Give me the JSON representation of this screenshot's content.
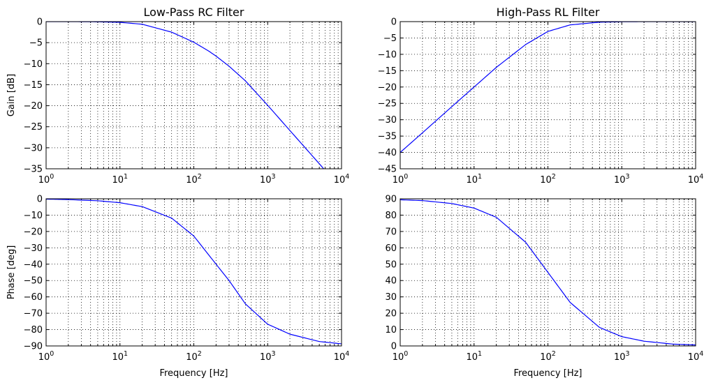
{
  "chart_data": [
    {
      "type": "line",
      "title": "Low-Pass RC Filter",
      "xlabel": "",
      "ylabel": "Gain [dB]",
      "xscale": "log",
      "xlim": [
        1,
        10000
      ],
      "ylim": [
        -35,
        0
      ],
      "yticks": [
        0,
        -5,
        -10,
        -15,
        -20,
        -25,
        -30,
        -35
      ],
      "ytick_labels": [
        "0",
        "−5",
        "−10",
        "−15",
        "−20",
        "−25",
        "−30",
        "−35"
      ],
      "xticks": [
        {
          "base": "10",
          "exp": "0",
          "value": 1
        },
        {
          "base": "10",
          "exp": "1",
          "value": 10
        },
        {
          "base": "10",
          "exp": "2",
          "value": 100
        },
        {
          "base": "10",
          "exp": "3",
          "value": 1000
        },
        {
          "base": "10",
          "exp": "4",
          "value": 10000
        }
      ],
      "grid": true,
      "color": "#0000ff",
      "series": [
        {
          "x": [
            1,
            2,
            5,
            10,
            20,
            50,
            100,
            159,
            200,
            300,
            500,
            1000,
            2000,
            5000,
            10000
          ],
          "y": [
            0,
            0,
            -0.04,
            -0.17,
            -0.62,
            -2.5,
            -4.9,
            -7.0,
            -8.2,
            -10.6,
            -14.1,
            -19.9,
            -25.9,
            -33.8,
            -39.9
          ]
        }
      ]
    },
    {
      "type": "line",
      "title": "High-Pass RL Filter",
      "xlabel": "",
      "ylabel": "",
      "xscale": "log",
      "xlim": [
        1,
        10000
      ],
      "ylim": [
        -45,
        0
      ],
      "yticks": [
        0,
        -5,
        -10,
        -15,
        -20,
        -25,
        -30,
        -35,
        -40,
        -45
      ],
      "ytick_labels": [
        "0",
        "−5",
        "−10",
        "−15",
        "−20",
        "−25",
        "−30",
        "−35",
        "−40",
        "−45"
      ],
      "xticks": [
        {
          "base": "10",
          "exp": "0",
          "value": 1
        },
        {
          "base": "10",
          "exp": "1",
          "value": 10
        },
        {
          "base": "10",
          "exp": "2",
          "value": 100
        },
        {
          "base": "10",
          "exp": "3",
          "value": 1000
        },
        {
          "base": "10",
          "exp": "4",
          "value": 10000
        }
      ],
      "grid": true,
      "color": "#0000ff",
      "series": [
        {
          "x": [
            1,
            2,
            5,
            10,
            20,
            50,
            100,
            200,
            500,
            1000,
            2000,
            5000,
            10000
          ],
          "y": [
            -40.0,
            -34.0,
            -26.0,
            -20.0,
            -14.0,
            -7.0,
            -3.0,
            -1.0,
            -0.17,
            -0.04,
            -0.01,
            0,
            0
          ]
        }
      ]
    },
    {
      "type": "line",
      "title": "",
      "xlabel": "Frequency [Hz]",
      "ylabel": "Phase [deg]",
      "xscale": "log",
      "xlim": [
        1,
        10000
      ],
      "ylim": [
        -90,
        0
      ],
      "yticks": [
        0,
        -10,
        -20,
        -30,
        -40,
        -50,
        -60,
        -70,
        -80,
        -90
      ],
      "ytick_labels": [
        "0",
        "−10",
        "−20",
        "−30",
        "−40",
        "−50",
        "−60",
        "−70",
        "−80",
        "−90"
      ],
      "xticks": [
        {
          "base": "10",
          "exp": "0",
          "value": 1
        },
        {
          "base": "10",
          "exp": "1",
          "value": 10
        },
        {
          "base": "10",
          "exp": "2",
          "value": 100
        },
        {
          "base": "10",
          "exp": "3",
          "value": 1000
        },
        {
          "base": "10",
          "exp": "4",
          "value": 10000
        }
      ],
      "grid": true,
      "color": "#0000ff",
      "series": [
        {
          "x": [
            1,
            2,
            5,
            10,
            20,
            50,
            100,
            200,
            300,
            500,
            1000,
            2000,
            5000,
            10000
          ],
          "y": [
            -0.2,
            -0.5,
            -1.2,
            -2.4,
            -4.8,
            -11.8,
            -22.8,
            -40.0,
            -50.0,
            -64.3,
            -76.7,
            -82.8,
            -87.3,
            -88.7
          ]
        }
      ]
    },
    {
      "type": "line",
      "title": "",
      "xlabel": "Frequency [Hz]",
      "ylabel": "",
      "xscale": "log",
      "xlim": [
        1,
        10000
      ],
      "ylim": [
        0,
        90
      ],
      "yticks": [
        0,
        10,
        20,
        30,
        40,
        50,
        60,
        70,
        80,
        90
      ],
      "ytick_labels": [
        "0",
        "10",
        "20",
        "30",
        "40",
        "50",
        "60",
        "70",
        "80",
        "90"
      ],
      "xticks": [
        {
          "base": "10",
          "exp": "0",
          "value": 1
        },
        {
          "base": "10",
          "exp": "1",
          "value": 10
        },
        {
          "base": "10",
          "exp": "2",
          "value": 100
        },
        {
          "base": "10",
          "exp": "3",
          "value": 1000
        },
        {
          "base": "10",
          "exp": "4",
          "value": 10000
        }
      ],
      "grid": true,
      "color": "#0000ff",
      "series": [
        {
          "x": [
            1,
            2,
            5,
            10,
            20,
            50,
            100,
            200,
            500,
            1000,
            2000,
            5000,
            10000
          ],
          "y": [
            89.4,
            88.9,
            87.1,
            84.3,
            78.7,
            63.4,
            45.0,
            26.6,
            11.3,
            5.7,
            2.9,
            1.1,
            0.6
          ]
        }
      ]
    }
  ]
}
